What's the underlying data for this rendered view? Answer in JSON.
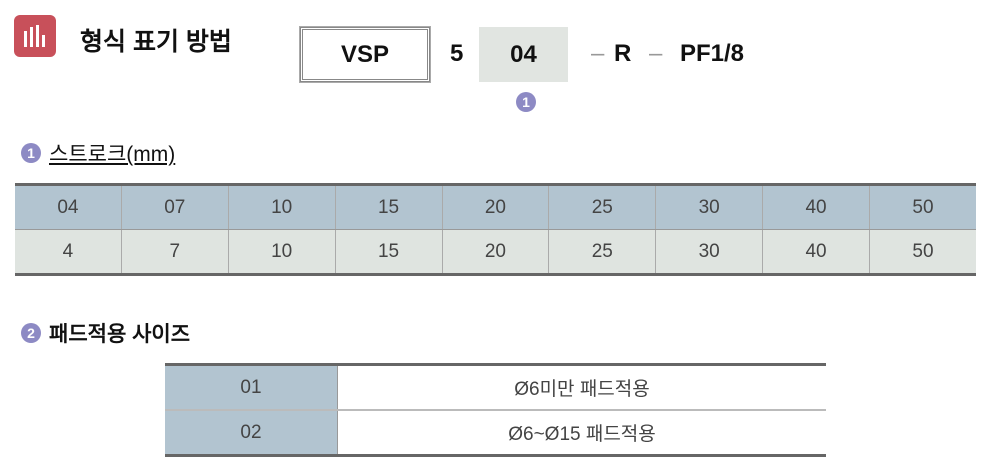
{
  "header": {
    "title": "형식 표기 방법",
    "icon": "bar-chart-icon",
    "accent": "#c8505a"
  },
  "model": {
    "series": "VSP",
    "size": "5",
    "stroke": "04",
    "sep": "–",
    "thread_type": "R",
    "port": "PF1/8",
    "marker": "1"
  },
  "stroke_section": {
    "marker": "1",
    "title": "스트로크(mm)",
    "codes": [
      "04",
      "07",
      "10",
      "15",
      "20",
      "25",
      "30",
      "40",
      "50"
    ],
    "values": [
      "4",
      "7",
      "10",
      "15",
      "20",
      "25",
      "30",
      "40",
      "50"
    ]
  },
  "pad_section": {
    "marker": "2",
    "title": "패드적용 사이즈",
    "rows": [
      {
        "code": "01",
        "desc": "Ø6미만 패드적용"
      },
      {
        "code": "02",
        "desc": "Ø6~Ø15 패드적용"
      }
    ]
  }
}
